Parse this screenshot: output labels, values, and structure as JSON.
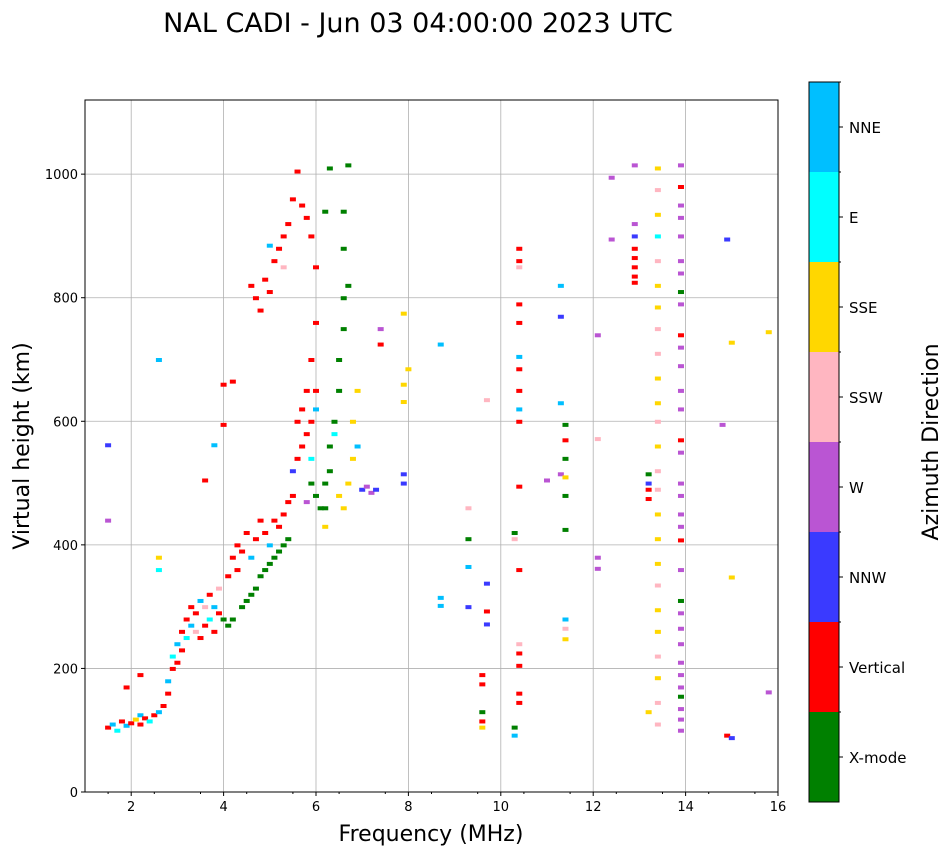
{
  "chart_data": {
    "type": "scatter",
    "title": "NAL CADI - Jun 03 04:00:00 2023 UTC",
    "xlabel": "Frequency (MHz)",
    "ylabel": "Virtual height (km)",
    "xlim": [
      1,
      16
    ],
    "ylim": [
      0,
      1120
    ],
    "xticks": [
      2,
      4,
      6,
      8,
      10,
      12,
      14,
      16
    ],
    "yticks": [
      0,
      200,
      400,
      600,
      800,
      1000
    ],
    "grid": true,
    "colorbar": {
      "label": "Azimuth Direction",
      "categories": [
        {
          "name": "X-mode",
          "color": "#008000"
        },
        {
          "name": "Vertical",
          "color": "#ff0000"
        },
        {
          "name": "NNW",
          "color": "#3a3aff"
        },
        {
          "name": "W",
          "color": "#ba55d3"
        },
        {
          "name": "SSW",
          "color": "#ffb6c1"
        },
        {
          "name": "SSE",
          "color": "#ffd700"
        },
        {
          "name": "E",
          "color": "#00ffff"
        },
        {
          "name": "NNE",
          "color": "#00bfff"
        }
      ]
    },
    "point_format": [
      "frequency_MHz",
      "virtual_height_km",
      "category_index"
    ],
    "points": [
      [
        1.5,
        105,
        1
      ],
      [
        1.6,
        110,
        7
      ],
      [
        1.7,
        100,
        6
      ],
      [
        1.8,
        115,
        1
      ],
      [
        1.9,
        108,
        7
      ],
      [
        2.0,
        112,
        1
      ],
      [
        2.1,
        118,
        5
      ],
      [
        2.2,
        110,
        1
      ],
      [
        2.2,
        125,
        7
      ],
      [
        2.3,
        120,
        1
      ],
      [
        2.4,
        115,
        6
      ],
      [
        2.5,
        125,
        1
      ],
      [
        2.6,
        130,
        7
      ],
      [
        2.7,
        140,
        1
      ],
      [
        1.5,
        562,
        2
      ],
      [
        1.5,
        440,
        3
      ],
      [
        1.9,
        170,
        1
      ],
      [
        2.2,
        190,
        1
      ],
      [
        2.6,
        360,
        6
      ],
      [
        2.6,
        380,
        5
      ],
      [
        2.6,
        700,
        7
      ],
      [
        2.8,
        160,
        1
      ],
      [
        2.8,
        180,
        7
      ],
      [
        2.9,
        200,
        1
      ],
      [
        2.9,
        220,
        6
      ],
      [
        3.0,
        210,
        1
      ],
      [
        3.0,
        240,
        7
      ],
      [
        3.1,
        230,
        1
      ],
      [
        3.1,
        260,
        1
      ],
      [
        3.2,
        250,
        6
      ],
      [
        3.2,
        280,
        1
      ],
      [
        3.3,
        270,
        7
      ],
      [
        3.3,
        300,
        1
      ],
      [
        3.4,
        260,
        4
      ],
      [
        3.4,
        290,
        1
      ],
      [
        3.5,
        250,
        1
      ],
      [
        3.5,
        310,
        7
      ],
      [
        3.6,
        270,
        1
      ],
      [
        3.6,
        300,
        4
      ],
      [
        3.7,
        280,
        6
      ],
      [
        3.7,
        320,
        1
      ],
      [
        3.8,
        260,
        1
      ],
      [
        3.8,
        300,
        7
      ],
      [
        3.9,
        290,
        1
      ],
      [
        3.9,
        330,
        4
      ],
      [
        3.6,
        505,
        1
      ],
      [
        3.8,
        562,
        7
      ],
      [
        4.0,
        595,
        1
      ],
      [
        4.0,
        660,
        1
      ],
      [
        4.2,
        665,
        1
      ],
      [
        4.0,
        280,
        0
      ],
      [
        4.1,
        270,
        0
      ],
      [
        4.1,
        350,
        1
      ],
      [
        4.2,
        280,
        0
      ],
      [
        4.2,
        380,
        1
      ],
      [
        4.3,
        360,
        1
      ],
      [
        4.3,
        400,
        1
      ],
      [
        4.4,
        300,
        0
      ],
      [
        4.4,
        390,
        1
      ],
      [
        4.5,
        310,
        0
      ],
      [
        4.5,
        420,
        1
      ],
      [
        4.6,
        320,
        0
      ],
      [
        4.6,
        380,
        7
      ],
      [
        4.7,
        330,
        0
      ],
      [
        4.7,
        410,
        1
      ],
      [
        4.8,
        350,
        0
      ],
      [
        4.8,
        440,
        1
      ],
      [
        4.9,
        360,
        0
      ],
      [
        4.9,
        420,
        1
      ],
      [
        5.0,
        370,
        0
      ],
      [
        5.0,
        400,
        7
      ],
      [
        5.1,
        380,
        0
      ],
      [
        5.1,
        440,
        1
      ],
      [
        5.2,
        390,
        0
      ],
      [
        5.2,
        430,
        1
      ],
      [
        5.3,
        400,
        0
      ],
      [
        5.3,
        450,
        1
      ],
      [
        5.4,
        410,
        0
      ],
      [
        5.4,
        470,
        1
      ],
      [
        4.6,
        820,
        1
      ],
      [
        4.7,
        800,
        1
      ],
      [
        4.8,
        780,
        1
      ],
      [
        4.9,
        830,
        1
      ],
      [
        5.0,
        810,
        1
      ],
      [
        5.1,
        860,
        1
      ],
      [
        5.2,
        880,
        1
      ],
      [
        5.3,
        900,
        1
      ],
      [
        5.4,
        920,
        1
      ],
      [
        5.5,
        960,
        1
      ],
      [
        5.6,
        1005,
        1
      ],
      [
        5.7,
        950,
        1
      ],
      [
        5.8,
        930,
        1
      ],
      [
        5.9,
        900,
        1
      ],
      [
        6.0,
        850,
        1
      ],
      [
        5.0,
        885,
        7
      ],
      [
        5.3,
        850,
        4
      ],
      [
        5.5,
        480,
        1
      ],
      [
        5.5,
        520,
        2
      ],
      [
        5.6,
        540,
        1
      ],
      [
        5.6,
        600,
        1
      ],
      [
        5.7,
        560,
        1
      ],
      [
        5.7,
        620,
        1
      ],
      [
        5.8,
        580,
        1
      ],
      [
        5.8,
        650,
        1
      ],
      [
        5.9,
        600,
        1
      ],
      [
        5.9,
        700,
        1
      ],
      [
        6.0,
        650,
        1
      ],
      [
        6.0,
        760,
        1
      ],
      [
        5.9,
        500,
        0
      ],
      [
        6.0,
        480,
        0
      ],
      [
        6.1,
        460,
        0
      ],
      [
        5.8,
        470,
        3
      ],
      [
        5.9,
        540,
        6
      ],
      [
        6.0,
        620,
        7
      ],
      [
        6.2,
        460,
        0
      ],
      [
        6.2,
        500,
        0
      ],
      [
        6.3,
        520,
        0
      ],
      [
        6.3,
        560,
        0
      ],
      [
        6.3,
        1010,
        0
      ],
      [
        6.2,
        940,
        0
      ],
      [
        6.4,
        600,
        0
      ],
      [
        6.5,
        650,
        0
      ],
      [
        6.5,
        700,
        0
      ],
      [
        6.6,
        750,
        0
      ],
      [
        6.6,
        800,
        0
      ],
      [
        6.6,
        880,
        0
      ],
      [
        6.6,
        940,
        0
      ],
      [
        6.7,
        820,
        0
      ],
      [
        6.7,
        1015,
        0
      ],
      [
        6.5,
        480,
        5
      ],
      [
        6.6,
        460,
        5
      ],
      [
        6.7,
        500,
        5
      ],
      [
        6.8,
        540,
        5
      ],
      [
        6.8,
        600,
        5
      ],
      [
        6.9,
        650,
        5
      ],
      [
        6.9,
        560,
        7
      ],
      [
        6.2,
        430,
        5
      ],
      [
        6.4,
        580,
        6
      ],
      [
        7.0,
        490,
        2
      ],
      [
        7.1,
        495,
        3
      ],
      [
        7.2,
        485,
        3
      ],
      [
        7.3,
        490,
        2
      ],
      [
        7.4,
        750,
        3
      ],
      [
        7.4,
        725,
        1
      ],
      [
        7.9,
        500,
        2
      ],
      [
        7.9,
        515,
        2
      ],
      [
        7.9,
        660,
        5
      ],
      [
        7.9,
        775,
        5
      ],
      [
        7.9,
        632,
        5
      ],
      [
        8.0,
        685,
        5
      ],
      [
        8.7,
        725,
        7
      ],
      [
        8.7,
        315,
        7
      ],
      [
        8.7,
        302,
        7
      ],
      [
        9.3,
        460,
        4
      ],
      [
        9.3,
        410,
        0
      ],
      [
        9.3,
        365,
        7
      ],
      [
        9.3,
        300,
        2
      ],
      [
        9.6,
        190,
        1
      ],
      [
        9.6,
        175,
        1
      ],
      [
        9.6,
        130,
        0
      ],
      [
        9.6,
        115,
        1
      ],
      [
        9.6,
        105,
        5
      ],
      [
        9.7,
        635,
        4
      ],
      [
        9.7,
        338,
        2
      ],
      [
        9.7,
        293,
        1
      ],
      [
        9.7,
        272,
        2
      ],
      [
        10.3,
        420,
        0
      ],
      [
        10.3,
        410,
        4
      ],
      [
        10.3,
        105,
        0
      ],
      [
        10.3,
        92,
        7
      ],
      [
        10.4,
        880,
        1
      ],
      [
        10.4,
        860,
        1
      ],
      [
        10.4,
        850,
        4
      ],
      [
        10.4,
        790,
        1
      ],
      [
        10.4,
        760,
        1
      ],
      [
        10.4,
        705,
        7
      ],
      [
        10.4,
        685,
        1
      ],
      [
        10.4,
        650,
        1
      ],
      [
        10.4,
        620,
        7
      ],
      [
        10.4,
        600,
        1
      ],
      [
        10.4,
        495,
        1
      ],
      [
        10.4,
        360,
        1
      ],
      [
        10.4,
        240,
        4
      ],
      [
        10.4,
        225,
        1
      ],
      [
        10.4,
        205,
        1
      ],
      [
        10.4,
        160,
        1
      ],
      [
        10.4,
        145,
        1
      ],
      [
        11.0,
        505,
        3
      ],
      [
        11.3,
        820,
        7
      ],
      [
        11.3,
        770,
        2
      ],
      [
        11.3,
        630,
        7
      ],
      [
        11.3,
        515,
        3
      ],
      [
        11.4,
        595,
        0
      ],
      [
        11.4,
        570,
        1
      ],
      [
        11.4,
        540,
        0
      ],
      [
        11.4,
        510,
        5
      ],
      [
        11.4,
        480,
        0
      ],
      [
        11.4,
        425,
        0
      ],
      [
        11.4,
        280,
        7
      ],
      [
        11.4,
        265,
        4
      ],
      [
        11.4,
        248,
        5
      ],
      [
        12.1,
        740,
        3
      ],
      [
        12.1,
        572,
        4
      ],
      [
        12.1,
        380,
        3
      ],
      [
        12.1,
        362,
        3
      ],
      [
        12.4,
        995,
        3
      ],
      [
        12.4,
        895,
        3
      ],
      [
        12.9,
        1015,
        3
      ],
      [
        12.9,
        920,
        3
      ],
      [
        12.9,
        900,
        2
      ],
      [
        12.9,
        880,
        1
      ],
      [
        12.9,
        865,
        1
      ],
      [
        12.9,
        850,
        1
      ],
      [
        12.9,
        835,
        1
      ],
      [
        12.9,
        825,
        1
      ],
      [
        13.2,
        515,
        0
      ],
      [
        13.2,
        500,
        2
      ],
      [
        13.2,
        490,
        1
      ],
      [
        13.2,
        475,
        1
      ],
      [
        13.2,
        130,
        5
      ],
      [
        13.4,
        1010,
        5
      ],
      [
        13.4,
        975,
        4
      ],
      [
        13.4,
        935,
        5
      ],
      [
        13.4,
        900,
        6
      ],
      [
        13.4,
        860,
        4
      ],
      [
        13.4,
        820,
        5
      ],
      [
        13.4,
        785,
        5
      ],
      [
        13.4,
        750,
        4
      ],
      [
        13.4,
        710,
        4
      ],
      [
        13.4,
        670,
        5
      ],
      [
        13.4,
        630,
        5
      ],
      [
        13.4,
        600,
        4
      ],
      [
        13.4,
        560,
        5
      ],
      [
        13.4,
        520,
        4
      ],
      [
        13.4,
        490,
        4
      ],
      [
        13.4,
        450,
        5
      ],
      [
        13.4,
        410,
        5
      ],
      [
        13.4,
        370,
        5
      ],
      [
        13.4,
        335,
        4
      ],
      [
        13.4,
        295,
        5
      ],
      [
        13.4,
        260,
        5
      ],
      [
        13.4,
        220,
        4
      ],
      [
        13.4,
        185,
        5
      ],
      [
        13.4,
        145,
        4
      ],
      [
        13.4,
        110,
        4
      ],
      [
        13.9,
        1015,
        3
      ],
      [
        13.9,
        980,
        1
      ],
      [
        13.9,
        950,
        3
      ],
      [
        13.9,
        930,
        3
      ],
      [
        13.9,
        900,
        3
      ],
      [
        13.9,
        860,
        3
      ],
      [
        13.9,
        840,
        3
      ],
      [
        13.9,
        810,
        0
      ],
      [
        13.9,
        790,
        3
      ],
      [
        13.9,
        740,
        1
      ],
      [
        13.9,
        720,
        3
      ],
      [
        13.9,
        690,
        3
      ],
      [
        13.9,
        650,
        3
      ],
      [
        13.9,
        620,
        3
      ],
      [
        13.9,
        570,
        1
      ],
      [
        13.9,
        550,
        3
      ],
      [
        13.9,
        500,
        3
      ],
      [
        13.9,
        480,
        3
      ],
      [
        13.9,
        450,
        3
      ],
      [
        13.9,
        430,
        3
      ],
      [
        13.9,
        408,
        1
      ],
      [
        13.9,
        360,
        3
      ],
      [
        13.9,
        310,
        0
      ],
      [
        13.9,
        290,
        3
      ],
      [
        13.9,
        265,
        3
      ],
      [
        13.9,
        240,
        3
      ],
      [
        13.9,
        210,
        3
      ],
      [
        13.9,
        190,
        3
      ],
      [
        13.9,
        170,
        3
      ],
      [
        13.9,
        155,
        0
      ],
      [
        13.9,
        135,
        3
      ],
      [
        13.9,
        118,
        3
      ],
      [
        13.9,
        100,
        3
      ],
      [
        14.9,
        895,
        2
      ],
      [
        15.0,
        728,
        5
      ],
      [
        14.8,
        595,
        3
      ],
      [
        15.0,
        348,
        5
      ],
      [
        14.9,
        92,
        1
      ],
      [
        15.0,
        88,
        2
      ],
      [
        15.8,
        745,
        5
      ],
      [
        15.8,
        162,
        3
      ]
    ]
  }
}
